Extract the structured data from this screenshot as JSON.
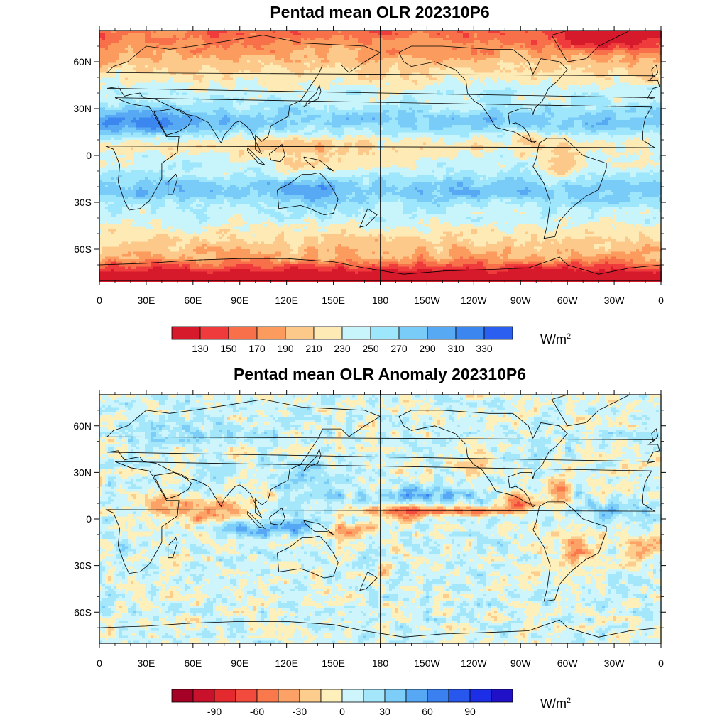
{
  "maps": [
    {
      "title": "Pentad mean OLR 202310P6",
      "field": "olr",
      "lat_ticks": [
        "60N",
        "30N",
        "0",
        "30S",
        "60S"
      ],
      "lon_ticks": [
        "0",
        "30E",
        "60E",
        "90E",
        "120E",
        "150E",
        "180",
        "150W",
        "120W",
        "90W",
        "60W",
        "30W",
        "0"
      ],
      "colorbar": {
        "unit": "W/m",
        "unit_exp": "2",
        "labels": [
          "130",
          "150",
          "170",
          "190",
          "210",
          "230",
          "250",
          "270",
          "290",
          "310",
          "330"
        ],
        "colors": [
          "#d7192c",
          "#ef3b3b",
          "#f7704a",
          "#fb9b5e",
          "#fdc98a",
          "#fdeab4",
          "#c8f4fb",
          "#9ee6fb",
          "#79cbf8",
          "#58a9f4",
          "#3c86f0",
          "#2a5ff0"
        ]
      }
    },
    {
      "title": "Pentad mean OLR Anomaly 202310P6",
      "field": "anom",
      "lat_ticks": [
        "60N",
        "30N",
        "0",
        "30S",
        "60S"
      ],
      "lon_ticks": [
        "0",
        "30E",
        "60E",
        "90E",
        "120E",
        "150E",
        "180",
        "150W",
        "120W",
        "90W",
        "60W",
        "30W",
        "0"
      ],
      "colorbar": {
        "unit": "W/m",
        "unit_exp": "2",
        "labels": [
          "-90",
          "-60",
          "-30",
          "0",
          "30",
          "60",
          "90"
        ],
        "colors": [
          "#a50026",
          "#c9112b",
          "#e4292f",
          "#f24a3d",
          "#f9784c",
          "#fca266",
          "#fdcd8d",
          "#fdf0bb",
          "#cdf5fb",
          "#a4e7fb",
          "#7ccdf8",
          "#56a8f4",
          "#3b80f0",
          "#2857ee",
          "#1c2ee6",
          "#2010c8"
        ]
      }
    }
  ]
}
